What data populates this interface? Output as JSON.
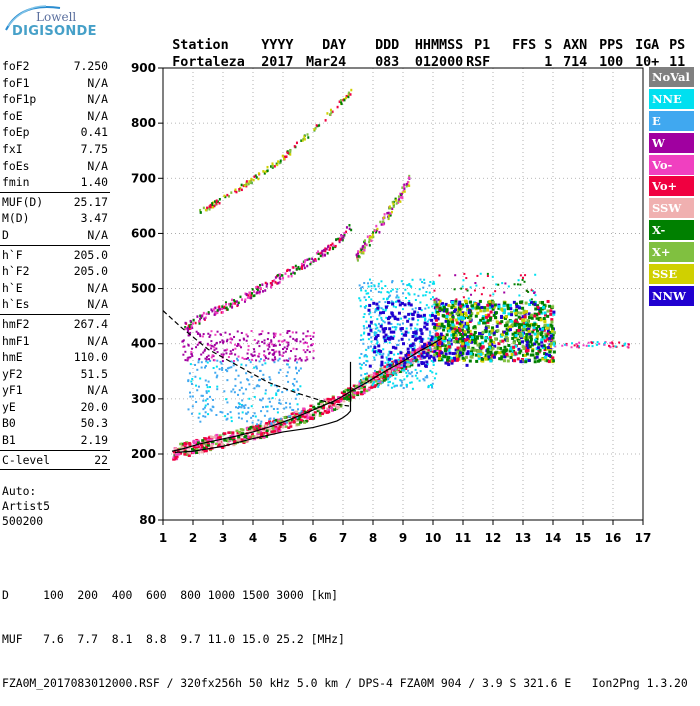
{
  "logo": {
    "line1": "Lowell",
    "line2": "DIGISONDE"
  },
  "header": {
    "labels": [
      "Station",
      "YYYY",
      "DAY",
      "DDD",
      "HHMMSS",
      "P1",
      "FFS",
      "S",
      "AXN",
      "PPS",
      "IGA",
      "PS"
    ],
    "values": [
      "Fortaleza",
      "2017",
      "Mar24",
      "083",
      "012000",
      "RSF",
      "",
      "1",
      "714",
      "100",
      "10+",
      "11"
    ]
  },
  "params": [
    {
      "label": "foF2",
      "value": "7.250"
    },
    {
      "label": "foF1",
      "value": "N/A"
    },
    {
      "label": "foF1p",
      "value": "N/A"
    },
    {
      "label": "foE",
      "value": "N/A"
    },
    {
      "label": "foEp",
      "value": "0.41"
    },
    {
      "label": "fxI",
      "value": "7.75"
    },
    {
      "label": "foEs",
      "value": "N/A"
    },
    {
      "label": "fmin",
      "value": "1.40",
      "sep_after": true
    },
    {
      "label": "MUF(D)",
      "value": "25.17"
    },
    {
      "label": "M(D)",
      "value": "3.47"
    },
    {
      "label": "D",
      "value": "N/A",
      "sep_after": true
    },
    {
      "label": "h`F",
      "value": "205.0"
    },
    {
      "label": "h`F2",
      "value": "205.0"
    },
    {
      "label": "h`E",
      "value": "N/A"
    },
    {
      "label": "h`Es",
      "value": "N/A",
      "sep_after": true
    },
    {
      "label": "hmF2",
      "value": "267.4"
    },
    {
      "label": "hmF1",
      "value": "N/A"
    },
    {
      "label": "hmE",
      "value": "110.0"
    },
    {
      "label": "yF2",
      "value": "51.5"
    },
    {
      "label": "yF1",
      "value": "N/A"
    },
    {
      "label": "yE",
      "value": "20.0"
    },
    {
      "label": "B0",
      "value": "50.3"
    },
    {
      "label": "B1",
      "value": "2.19",
      "sep_after": true
    },
    {
      "label": "C-level",
      "value": "22",
      "sep_after": true
    }
  ],
  "auto": {
    "line1": "Auto:",
    "line2": "Artist5",
    "line3": "500200"
  },
  "legend": [
    {
      "label": "NoVal",
      "color": "#808080"
    },
    {
      "label": "NNE",
      "color": "#00e0f0"
    },
    {
      "label": "E",
      "color": "#40a8f0"
    },
    {
      "label": "W",
      "color": "#a000a0"
    },
    {
      "label": "Vo-",
      "color": "#f040c0"
    },
    {
      "label": "Vo+",
      "color": "#f00040"
    },
    {
      "label": "SSW",
      "color": "#f0b0b0"
    },
    {
      "label": "X-",
      "color": "#008000"
    },
    {
      "label": "X+",
      "color": "#80c040"
    },
    {
      "label": "SSE",
      "color": "#d0d000"
    },
    {
      "label": "NNW",
      "color": "#2000d0"
    }
  ],
  "chart_data": {
    "type": "scatter",
    "xlim": [
      1,
      17
    ],
    "ylim": [
      80,
      900
    ],
    "x_ticks": [
      1,
      2,
      3,
      4,
      5,
      6,
      7,
      8,
      9,
      10,
      11,
      12,
      13,
      14,
      15,
      16,
      17
    ],
    "y_ticks": [
      80,
      200,
      300,
      400,
      500,
      600,
      700,
      800,
      900
    ],
    "y_tick_labels": [
      "80",
      "200",
      "300",
      "400",
      "500",
      "600",
      "700",
      "800",
      "900"
    ],
    "grid": true,
    "legend_position": "right",
    "profile_curve": {
      "x": [
        1.4,
        2.0,
        3.0,
        4.0,
        5.0,
        6.0,
        6.5,
        6.8,
        7.0,
        7.15,
        7.25,
        7.25
      ],
      "y": [
        203,
        205,
        214,
        228,
        240,
        248,
        255,
        260,
        266,
        272,
        278,
        367
      ]
    },
    "dashed_curve": {
      "x": [
        1.0,
        1.6,
        2.5,
        3.5,
        4.5,
        5.5,
        6.2,
        6.8,
        7.2
      ],
      "y": [
        460,
        430,
        390,
        360,
        330,
        310,
        298,
        290,
        287
      ]
    },
    "trace_O": {
      "x": [
        1.3,
        1.7,
        2.2,
        2.8,
        3.4,
        4.0,
        4.6,
        5.2,
        5.8,
        6.3,
        6.7,
        7.0,
        7.3,
        7.8,
        8.4,
        9.0,
        9.5,
        10.0,
        10.3
      ],
      "y": [
        205,
        210,
        218,
        225,
        232,
        240,
        250,
        262,
        275,
        287,
        296,
        305,
        315,
        330,
        350,
        368,
        385,
        400,
        410
      ]
    },
    "trace_2hop": {
      "x": [
        1.7,
        2.5,
        3.5,
        4.5,
        5.5,
        6.5,
        7.0,
        7.25
      ],
      "y": [
        432,
        455,
        480,
        510,
        540,
        575,
        600,
        615
      ]
    },
    "trace_3hop": {
      "x": [
        2.2,
        3.0,
        4.0,
        5.0,
        6.0,
        6.8,
        7.25
      ],
      "y": [
        640,
        665,
        700,
        740,
        790,
        835,
        860
      ]
    },
    "trace_X_2hop": {
      "x": [
        7.4,
        8.0,
        8.5,
        9.0,
        9.2
      ],
      "y": [
        560,
        600,
        640,
        680,
        700
      ]
    }
  },
  "footer": {
    "d_line": "D     100  200  400  600  800 1000 1500 3000 [km]",
    "muf_line": "MUF   7.6  7.7  8.1  8.8  9.7 11.0 15.0 25.2 [MHz]",
    "file_line": "FZA0M_2017083012000.RSF / 320fx256h 50 kHz 5.0 km / DPS-4 FZA0M 904 / 3.9 S 321.6 E   Ion2Png 1.3.20"
  }
}
